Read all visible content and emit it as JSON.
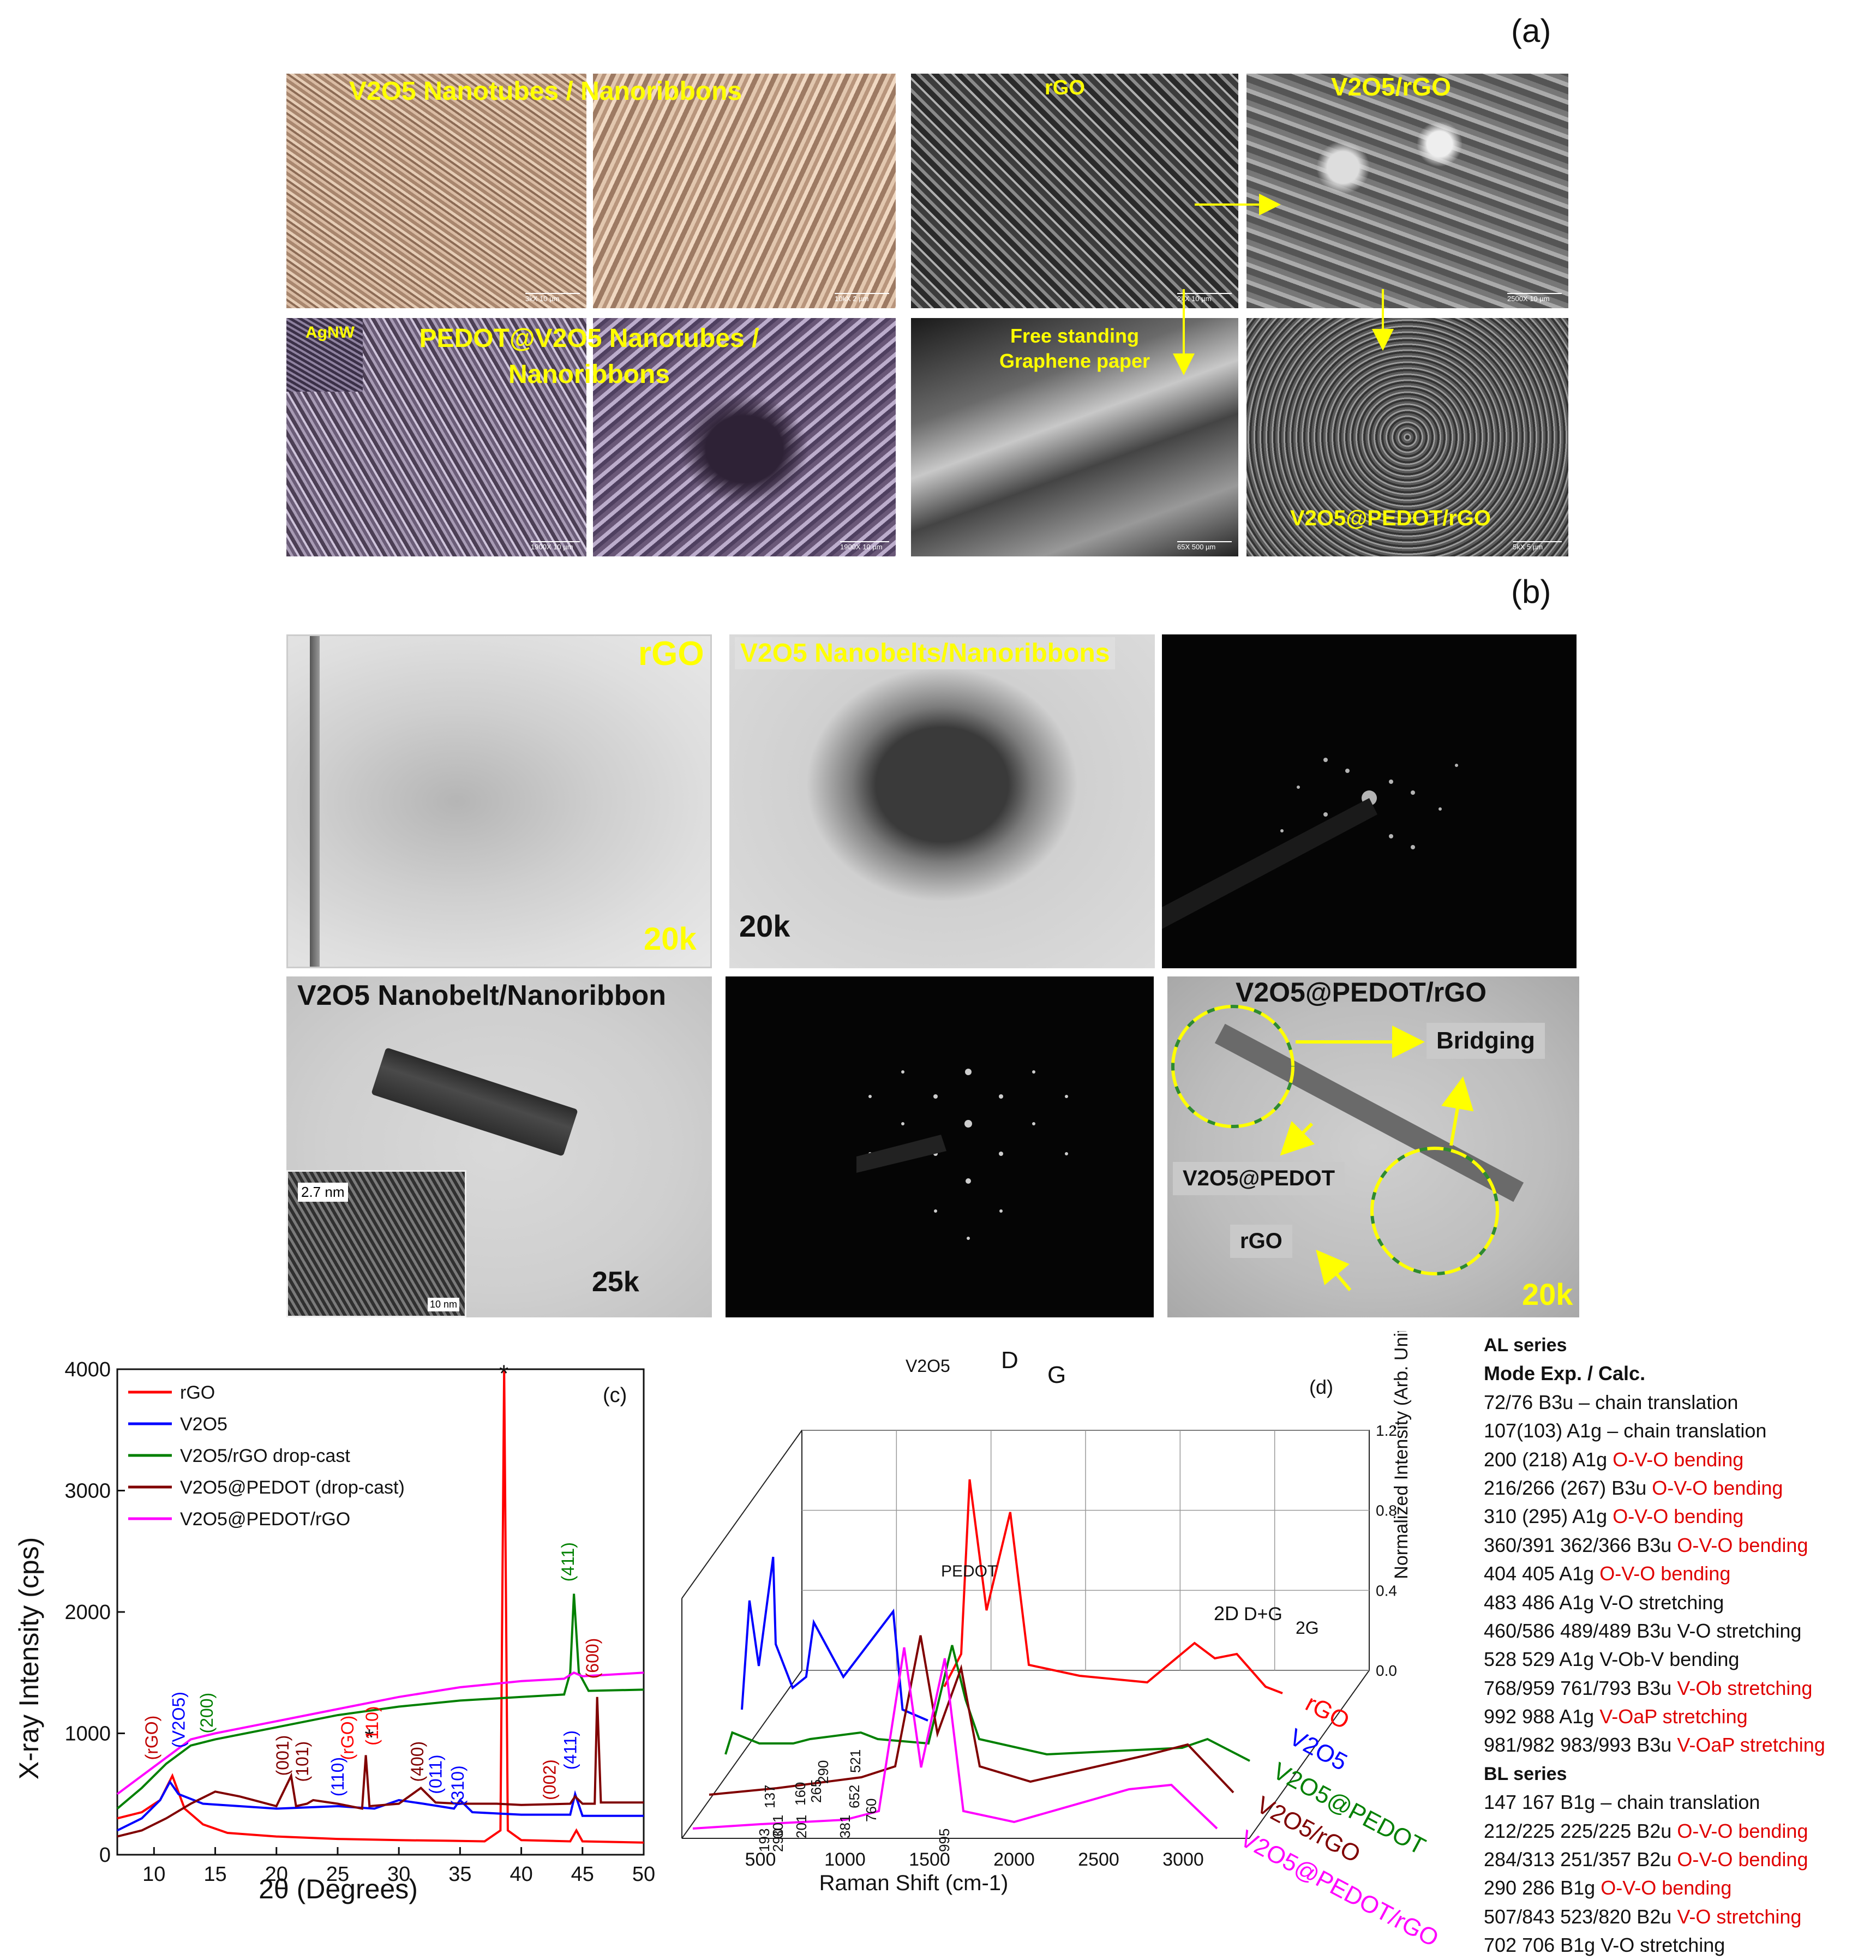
{
  "panel_letters": {
    "a": "(a)",
    "b": "(b)",
    "c": "(c)",
    "d": "(d)"
  },
  "sem": {
    "label_v2o5": "V2O5 Nanotubes / Nanoribbons",
    "label_rgo": "rGO",
    "label_v2o5_rgo": "V2O5/rGO",
    "label_agnw": "AgNW",
    "label_pedot_v2o5": "PEDOT@V2O5 Nanotubes / Nanoribbons",
    "label_paper": "Free standing Graphene paper",
    "label_v2o5_pedot_rgo": "V2O5@PEDOT/rGO",
    "scales": [
      "3kX 10 µm",
      "10kX 2 µm",
      "2kX 10 µm",
      "2500X 10 µm",
      "5kX 5 µm",
      "1900X 10 µm",
      "65X 500 µm",
      "5kX 5 µm"
    ]
  },
  "tem": {
    "label_rgo": "rGO",
    "mag_rgo": "20k",
    "label_nanobelts": "V2O5 Nanobelts/Nanoribbons",
    "mag_nanobelts": "20k",
    "label_nanobelt": "V2O5 Nanobelt/Nanoribbon",
    "mag_nanobelt": "25k",
    "inset_spacing": "2.7 nm",
    "inset_scale": "10 nm",
    "label_composite": "V2O5@PEDOT/rGO",
    "bridging": "Bridging",
    "v2o5_pedot": "V2O5@PEDOT",
    "rgo": "rGO",
    "mag_composite": "20k"
  },
  "table": {
    "a_header": "AL series",
    "mode_header": "Mode Exp. / Calc.",
    "a_rows": [
      {
        "val": "72/76 B3u",
        "desc": "– chain translation",
        "red": false
      },
      {
        "val": "107(103) A1g",
        "desc": "– chain translation",
        "red": false
      },
      {
        "val": "200 (218) A1g",
        "desc": "O-V-O bending",
        "red": true
      },
      {
        "val": "216/266 (267) B3u",
        "desc": "O-V-O bending",
        "red": true
      },
      {
        "val": "310 (295) A1g",
        "desc": "O-V-O bending",
        "red": true
      },
      {
        "val": "360/391 362/366 B3u",
        "desc": "O-V-O bending",
        "red": true
      },
      {
        "val": "404 405 A1g",
        "desc": "O-V-O bending",
        "red": true
      },
      {
        "val": "483 486 A1g",
        "desc": "V-O stretching",
        "red": false
      },
      {
        "val": "460/586 489/489 B3u",
        "desc": "V-O stretching",
        "red": false
      },
      {
        "val": "528 529 A1g",
        "desc": "V-Ob-V bending",
        "red": false
      },
      {
        "val": "768/959 761/793 B3u",
        "desc": "V-Ob stretching",
        "red": true
      },
      {
        "val": "992 988 A1g",
        "desc": "V-OaP stretching",
        "red": true
      },
      {
        "val": "981/982 983/993 B3u",
        "desc": "V-OaP stretching",
        "red": true
      }
    ],
    "b_header": "BL series",
    "b_rows": [
      {
        "val": "147 167 B1g",
        "desc": "– chain translation",
        "red": false
      },
      {
        "val": "212/225 225/225 B2u",
        "desc": "O-V-O bending",
        "red": true
      },
      {
        "val": "284/313 251/357 B2u",
        "desc": "O-V-O bending",
        "red": true
      },
      {
        "val": "290 286 B1g",
        "desc": "O-V-O bending",
        "red": true
      },
      {
        "val": "507/843 523/820 B2u",
        "desc": "V-O stretching",
        "red": true
      },
      {
        "val": "702 706 B1g",
        "desc": "V-O stretching",
        "red": false
      }
    ]
  },
  "chart_data": [
    {
      "type": "line",
      "panel": "(c)",
      "xlabel": "2θ (Degrees)",
      "ylabel": "X-ray Intensity (cps)",
      "xlim": [
        7,
        50
      ],
      "ylim": [
        0,
        4000
      ],
      "xticks": [
        10,
        15,
        20,
        25,
        30,
        35,
        40,
        45,
        50
      ],
      "yticks": [
        0,
        1000,
        2000,
        3000,
        4000
      ],
      "legend_position": "top-left",
      "series": [
        {
          "name": "rGO",
          "color": "#ff0000",
          "points": [
            [
              7,
              300
            ],
            [
              9,
              350
            ],
            [
              10.5,
              450
            ],
            [
              11.5,
              650
            ],
            [
              12.5,
              380
            ],
            [
              14,
              250
            ],
            [
              16,
              180
            ],
            [
              20,
              150
            ],
            [
              25,
              130
            ],
            [
              30,
              120
            ],
            [
              34,
              115
            ],
            [
              37,
              110
            ],
            [
              38.3,
              200
            ],
            [
              38.6,
              4000
            ],
            [
              38.9,
              200
            ],
            [
              40,
              120
            ],
            [
              44,
              110
            ],
            [
              44.5,
              200
            ],
            [
              45,
              110
            ],
            [
              50,
              100
            ]
          ]
        },
        {
          "name": "V2O5",
          "color": "#0000ff",
          "points": [
            [
              7,
              200
            ],
            [
              9,
              300
            ],
            [
              10.5,
              450
            ],
            [
              11.3,
              600
            ],
            [
              12,
              500
            ],
            [
              14,
              420
            ],
            [
              17,
              400
            ],
            [
              20,
              380
            ],
            [
              25,
              400
            ],
            [
              28,
              380
            ],
            [
              30,
              450
            ],
            [
              32,
              420
            ],
            [
              34.5,
              380
            ],
            [
              35,
              450
            ],
            [
              36,
              350
            ],
            [
              40,
              330
            ],
            [
              44,
              330
            ],
            [
              44.4,
              500
            ],
            [
              45,
              320
            ],
            [
              50,
              320
            ]
          ]
        },
        {
          "name": "V2O5/rGO drop-cast",
          "color": "#008000",
          "points": [
            [
              7,
              380
            ],
            [
              9,
              550
            ],
            [
              11,
              750
            ],
            [
              13,
              900
            ],
            [
              15,
              950
            ],
            [
              20,
              1050
            ],
            [
              25,
              1150
            ],
            [
              30,
              1220
            ],
            [
              35,
              1270
            ],
            [
              40,
              1300
            ],
            [
              43.5,
              1320
            ],
            [
              44,
              1500
            ],
            [
              44.3,
              2150
            ],
            [
              44.7,
              1500
            ],
            [
              45.5,
              1350
            ],
            [
              50,
              1360
            ]
          ]
        },
        {
          "name": "V2O5@PEDOT (drop-cast)",
          "color": "#800000",
          "points": [
            [
              7,
              150
            ],
            [
              9,
              200
            ],
            [
              11,
              300
            ],
            [
              13,
              420
            ],
            [
              15,
              520
            ],
            [
              17,
              480
            ],
            [
              20,
              400
            ],
            [
              21.2,
              650
            ],
            [
              21.6,
              400
            ],
            [
              22.5,
              420
            ],
            [
              23,
              450
            ],
            [
              25,
              420
            ],
            [
              27,
              380
            ],
            [
              27.3,
              820
            ],
            [
              27.6,
              400
            ],
            [
              30,
              420
            ],
            [
              31.8,
              550
            ],
            [
              32.3,
              500
            ],
            [
              33,
              430
            ],
            [
              35,
              420
            ],
            [
              38,
              420
            ],
            [
              40,
              410
            ],
            [
              44,
              420
            ],
            [
              44.4,
              480
            ],
            [
              45,
              420
            ],
            [
              46,
              420
            ],
            [
              46.2,
              1300
            ],
            [
              46.5,
              430
            ],
            [
              50,
              430
            ]
          ]
        },
        {
          "name": "V2O5@PEDOT/rGO",
          "color": "#ff00ff",
          "points": [
            [
              7,
              500
            ],
            [
              9,
              650
            ],
            [
              11,
              800
            ],
            [
              13,
              950
            ],
            [
              15,
              1000
            ],
            [
              20,
              1100
            ],
            [
              25,
              1200
            ],
            [
              30,
              1300
            ],
            [
              35,
              1380
            ],
            [
              40,
              1430
            ],
            [
              43.5,
              1450
            ],
            [
              44.3,
              1500
            ],
            [
              45,
              1470
            ],
            [
              50,
              1500
            ]
          ]
        }
      ],
      "annotations": [
        "(rGO)",
        "(V2O5)",
        "(200)",
        "(001)",
        "(101)",
        "(110)",
        "(rGO)",
        "*",
        "(110)",
        "(400)",
        "(011)",
        "(310)",
        "*",
        "(002)",
        "(411)",
        "(411)",
        "(600)"
      ]
    },
    {
      "type": "line",
      "panel": "(d)",
      "xlabel": "Raman Shift (cm-1)",
      "zlabel": "Normalized Intensity (Arb. Units)",
      "xticks": [
        500,
        1000,
        1500,
        2000,
        2500,
        3000
      ],
      "zticks": [
        0.0,
        0.4,
        0.8,
        1.2
      ],
      "series": [
        {
          "name": "rGO",
          "color": "#ff0000",
          "points": [
            [
              1200,
              0.05
            ],
            [
              1300,
              0.2
            ],
            [
              1350,
              1.0
            ],
            [
              1450,
              0.4
            ],
            [
              1590,
              0.85
            ],
            [
              1700,
              0.15
            ],
            [
              2000,
              0.1
            ],
            [
              2400,
              0.07
            ],
            [
              2680,
              0.25
            ],
            [
              2800,
              0.18
            ],
            [
              2930,
              0.2
            ],
            [
              3100,
              0.05
            ],
            [
              3200,
              0.02
            ]
          ]
        },
        {
          "name": "V2O5",
          "color": "#0000ff",
          "points": [
            [
              100,
              0.1
            ],
            [
              145,
              0.6
            ],
            [
              200,
              0.3
            ],
            [
              285,
              0.8
            ],
            [
              300,
              0.4
            ],
            [
              400,
              0.2
            ],
            [
              480,
              0.25
            ],
            [
              525,
              0.5
            ],
            [
              700,
              0.25
            ],
            [
              995,
              0.55
            ],
            [
              1050,
              0.1
            ],
            [
              1200,
              0.05
            ]
          ]
        },
        {
          "name": "V2O5@PEDOT",
          "color": "#008000",
          "points": [
            [
              100,
              0.05
            ],
            [
              140,
              0.15
            ],
            [
              300,
              0.1
            ],
            [
              500,
              0.1
            ],
            [
              600,
              0.12
            ],
            [
              900,
              0.15
            ],
            [
              1000,
              0.12
            ],
            [
              1300,
              0.1
            ],
            [
              1440,
              0.55
            ],
            [
              1520,
              0.3
            ],
            [
              1600,
              0.12
            ],
            [
              2000,
              0.05
            ],
            [
              2800,
              0.08
            ],
            [
              2950,
              0.12
            ],
            [
              3200,
              0.02
            ]
          ]
        },
        {
          "name": "V2O5/rGO",
          "color": "#800000",
          "points": [
            [
              100,
              0.02
            ],
            [
              500,
              0.05
            ],
            [
              1000,
              0.1
            ],
            [
              1200,
              0.15
            ],
            [
              1350,
              0.75
            ],
            [
              1450,
              0.3
            ],
            [
              1590,
              0.6
            ],
            [
              1700,
              0.15
            ],
            [
              2000,
              0.08
            ],
            [
              2680,
              0.2
            ],
            [
              2930,
              0.25
            ],
            [
              3200,
              0.03
            ]
          ]
        },
        {
          "name": "V2O5@PEDOT/rGO",
          "color": "#ff00ff",
          "points": [
            [
              100,
              0.02
            ],
            [
              500,
              0.04
            ],
            [
              1000,
              0.06
            ],
            [
              1200,
              0.1
            ],
            [
              1350,
              0.85
            ],
            [
              1450,
              0.3
            ],
            [
              1590,
              0.8
            ],
            [
              1700,
              0.1
            ],
            [
              2000,
              0.05
            ],
            [
              2680,
              0.2
            ],
            [
              2930,
              0.22
            ],
            [
              3200,
              0.02
            ]
          ]
        }
      ],
      "annotations": [
        "D",
        "G",
        "2D",
        "D+G",
        "2G",
        "PEDOT",
        "V2O5",
        "137",
        "193",
        "290",
        "301",
        "160",
        "201",
        "265",
        "290",
        "381",
        "521",
        "652",
        "760",
        "995"
      ]
    }
  ]
}
